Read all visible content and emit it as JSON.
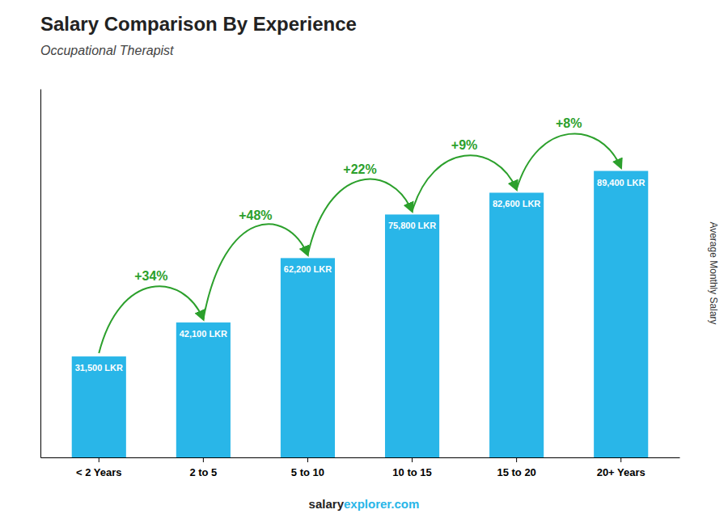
{
  "chart_data": {
    "type": "bar",
    "title": "Salary Comparison By Experience",
    "subtitle": "Occupational Therapist",
    "ylabel": "Average Monthly Salary",
    "categories": [
      "< 2 Years",
      "2 to 5",
      "5 to 10",
      "10 to 15",
      "15 to 20",
      "20+ Years"
    ],
    "values": [
      31500,
      42100,
      62200,
      75800,
      82600,
      89400
    ],
    "value_labels": [
      "31,500 LKR",
      "42,100 LKR",
      "62,200 LKR",
      "75,800 LKR",
      "82,600 LKR",
      "89,400 LKR"
    ],
    "data_labels": true,
    "annotations": [
      "+34%",
      "+48%",
      "+22%",
      "+9%",
      "+8%"
    ],
    "caption": [
      "salary",
      "explorer.com"
    ],
    "color": "#29B6E8",
    "ylim": [
      0,
      115000
    ],
    "tick_labels": "x",
    "grid": false
  }
}
